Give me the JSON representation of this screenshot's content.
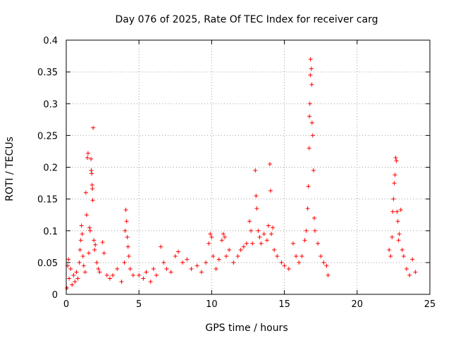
{
  "chart_data": {
    "type": "scatter",
    "title": "Day 076 of 2025, Rate Of TEC Index for receiver carg",
    "xlabel": "GPS time / hours",
    "ylabel": "ROTI / TECUs",
    "xlim": [
      0,
      25
    ],
    "ylim": [
      0,
      0.4
    ],
    "xticks": [
      0,
      5,
      10,
      15,
      20,
      25
    ],
    "xtick_labels": [
      "0",
      "5",
      "10",
      "15",
      "20",
      "25"
    ],
    "yticks": [
      0,
      0.05,
      0.1,
      0.15,
      0.2,
      0.25,
      0.3,
      0.35,
      0.4
    ],
    "ytick_labels": [
      "0",
      "0.05",
      "0.1",
      "0.15",
      "0.2",
      "0.25",
      "0.3",
      "0.35",
      "0.4"
    ],
    "grid": true,
    "legend": false,
    "marker": "+",
    "color": "#ff0000",
    "series": [
      {
        "values": [
          [
            0.05,
            0.01
          ],
          [
            0.1,
            0.045
          ],
          [
            0.15,
            0.055
          ],
          [
            0.2,
            0.025
          ],
          [
            0.3,
            0.04
          ],
          [
            0.4,
            0.015
          ],
          [
            0.5,
            0.03
          ],
          [
            0.6,
            0.02
          ],
          [
            0.7,
            0.035
          ],
          [
            0.8,
            0.025
          ],
          [
            0.9,
            0.05
          ],
          [
            0.95,
            0.07
          ],
          [
            1.0,
            0.085
          ],
          [
            1.05,
            0.108
          ],
          [
            1.1,
            0.095
          ],
          [
            1.15,
            0.06
          ],
          [
            1.2,
            0.045
          ],
          [
            1.3,
            0.035
          ],
          [
            1.35,
            0.16
          ],
          [
            1.4,
            0.125
          ],
          [
            1.45,
            0.215
          ],
          [
            1.5,
            0.222
          ],
          [
            1.55,
            0.065
          ],
          [
            1.6,
            0.105
          ],
          [
            1.65,
            0.1
          ],
          [
            1.7,
            0.213
          ],
          [
            1.72,
            0.195
          ],
          [
            1.75,
            0.19
          ],
          [
            1.78,
            0.172
          ],
          [
            1.8,
            0.166
          ],
          [
            1.82,
            0.148
          ],
          [
            1.85,
            0.262
          ],
          [
            1.9,
            0.085
          ],
          [
            1.95,
            0.07
          ],
          [
            2.0,
            0.078
          ],
          [
            2.1,
            0.05
          ],
          [
            2.2,
            0.04
          ],
          [
            2.3,
            0.035
          ],
          [
            2.5,
            0.082
          ],
          [
            2.6,
            0.065
          ],
          [
            2.8,
            0.03
          ],
          [
            3.0,
            0.025
          ],
          [
            3.2,
            0.03
          ],
          [
            3.5,
            0.04
          ],
          [
            3.8,
            0.02
          ],
          [
            4.0,
            0.05
          ],
          [
            4.05,
            0.1
          ],
          [
            4.1,
            0.133
          ],
          [
            4.15,
            0.115
          ],
          [
            4.2,
            0.09
          ],
          [
            4.25,
            0.075
          ],
          [
            4.3,
            0.06
          ],
          [
            4.4,
            0.04
          ],
          [
            4.6,
            0.03
          ],
          [
            5.0,
            0.03
          ],
          [
            5.3,
            0.025
          ],
          [
            5.5,
            0.035
          ],
          [
            5.8,
            0.02
          ],
          [
            6.0,
            0.04
          ],
          [
            6.2,
            0.03
          ],
          [
            6.5,
            0.075
          ],
          [
            6.7,
            0.05
          ],
          [
            6.9,
            0.04
          ],
          [
            7.2,
            0.035
          ],
          [
            7.5,
            0.06
          ],
          [
            7.7,
            0.067
          ],
          [
            8.0,
            0.05
          ],
          [
            8.3,
            0.055
          ],
          [
            8.6,
            0.04
          ],
          [
            9.0,
            0.045
          ],
          [
            9.3,
            0.035
          ],
          [
            9.6,
            0.05
          ],
          [
            9.8,
            0.08
          ],
          [
            9.9,
            0.095
          ],
          [
            10.0,
            0.09
          ],
          [
            10.1,
            0.06
          ],
          [
            10.3,
            0.04
          ],
          [
            10.5,
            0.055
          ],
          [
            10.7,
            0.085
          ],
          [
            10.8,
            0.095
          ],
          [
            10.9,
            0.09
          ],
          [
            11.0,
            0.06
          ],
          [
            11.2,
            0.07
          ],
          [
            11.5,
            0.05
          ],
          [
            11.8,
            0.06
          ],
          [
            12.0,
            0.07
          ],
          [
            12.2,
            0.075
          ],
          [
            12.4,
            0.08
          ],
          [
            12.6,
            0.115
          ],
          [
            12.7,
            0.1
          ],
          [
            12.8,
            0.08
          ],
          [
            13.0,
            0.195
          ],
          [
            13.05,
            0.155
          ],
          [
            13.1,
            0.135
          ],
          [
            13.2,
            0.1
          ],
          [
            13.3,
            0.09
          ],
          [
            13.4,
            0.08
          ],
          [
            13.6,
            0.095
          ],
          [
            13.8,
            0.085
          ],
          [
            13.9,
            0.108
          ],
          [
            14.0,
            0.205
          ],
          [
            14.05,
            0.163
          ],
          [
            14.1,
            0.095
          ],
          [
            14.2,
            0.105
          ],
          [
            14.3,
            0.07
          ],
          [
            14.5,
            0.06
          ],
          [
            14.8,
            0.05
          ],
          [
            15.0,
            0.045
          ],
          [
            15.3,
            0.04
          ],
          [
            15.6,
            0.08
          ],
          [
            15.8,
            0.06
          ],
          [
            16.0,
            0.05
          ],
          [
            16.2,
            0.06
          ],
          [
            16.4,
            0.085
          ],
          [
            16.5,
            0.1
          ],
          [
            16.6,
            0.135
          ],
          [
            16.65,
            0.17
          ],
          [
            16.7,
            0.23
          ],
          [
            16.72,
            0.28
          ],
          [
            16.75,
            0.3
          ],
          [
            16.78,
            0.345
          ],
          [
            16.8,
            0.37
          ],
          [
            16.85,
            0.355
          ],
          [
            16.88,
            0.33
          ],
          [
            16.9,
            0.27
          ],
          [
            16.95,
            0.25
          ],
          [
            17.0,
            0.195
          ],
          [
            17.05,
            0.12
          ],
          [
            17.1,
            0.1
          ],
          [
            17.3,
            0.08
          ],
          [
            17.5,
            0.06
          ],
          [
            17.7,
            0.05
          ],
          [
            17.9,
            0.045
          ],
          [
            18.0,
            0.03
          ],
          [
            22.2,
            0.07
          ],
          [
            22.3,
            0.06
          ],
          [
            22.4,
            0.09
          ],
          [
            22.45,
            0.13
          ],
          [
            22.5,
            0.15
          ],
          [
            22.55,
            0.175
          ],
          [
            22.6,
            0.188
          ],
          [
            22.65,
            0.215
          ],
          [
            22.7,
            0.21
          ],
          [
            22.75,
            0.13
          ],
          [
            22.8,
            0.115
          ],
          [
            22.85,
            0.085
          ],
          [
            22.9,
            0.095
          ],
          [
            23.0,
            0.133
          ],
          [
            23.1,
            0.07
          ],
          [
            23.2,
            0.06
          ],
          [
            23.4,
            0.04
          ],
          [
            23.6,
            0.03
          ],
          [
            23.8,
            0.055
          ],
          [
            24.0,
            0.035
          ]
        ]
      }
    ]
  }
}
